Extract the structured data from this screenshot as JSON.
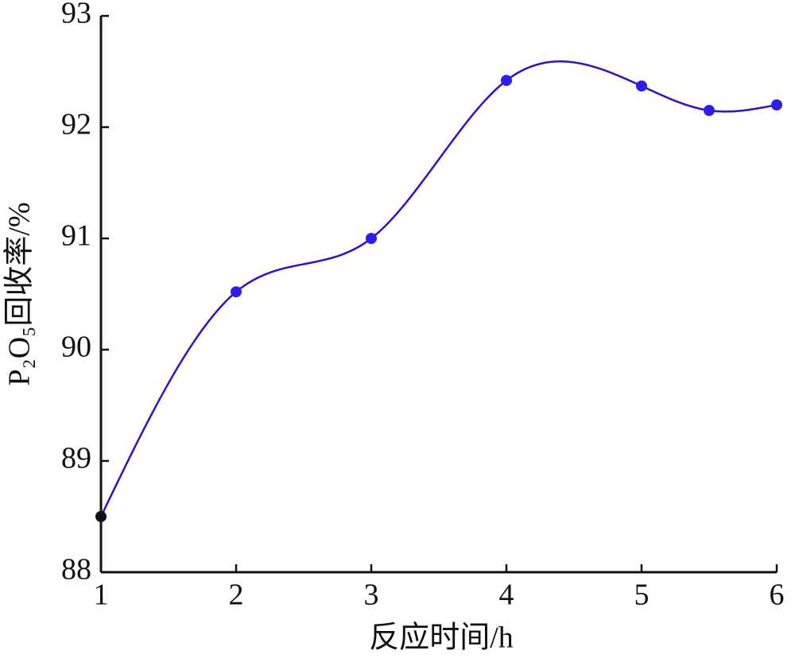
{
  "chart_data": {
    "type": "line",
    "xlabel": "反应时间/h",
    "ylabel": "P₂O₅回收率/%",
    "x": [
      1,
      2,
      3,
      4,
      5,
      5.5,
      6
    ],
    "series": [
      {
        "name": "P₂O₅回收率",
        "color": "#2d12c8",
        "marker_colors": [
          "#111111",
          "#2a1ff0",
          "#2a1ff0",
          "#2a1ff0",
          "#2a1ff0",
          "#2a1ff0",
          "#2a1ff0"
        ],
        "values": [
          88.5,
          90.52,
          91.0,
          92.42,
          92.37,
          92.15,
          92.2
        ]
      }
    ],
    "xlim": [
      1,
      6
    ],
    "xticks": [
      1,
      2,
      3,
      4,
      5,
      6
    ],
    "ylim": [
      88,
      93
    ],
    "yticks": [
      88,
      89,
      90,
      91,
      92,
      93
    ],
    "smooth": true,
    "grid": false
  }
}
